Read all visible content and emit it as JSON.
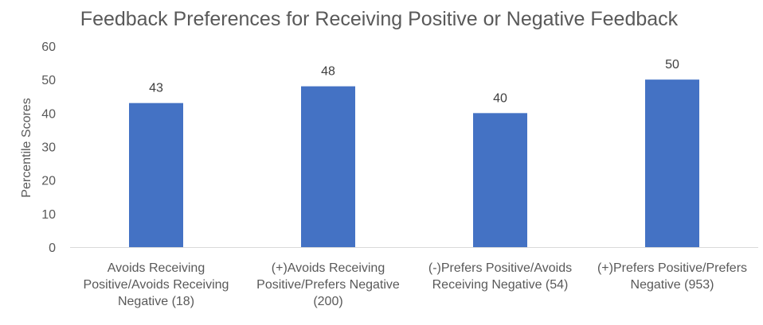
{
  "chart_data": {
    "type": "bar",
    "title": "Feedback Preferences for Receiving Positive or Negative Feedback",
    "xlabel": "",
    "ylabel": "Percentile Scores",
    "categories": [
      "Avoids Receiving Positive/Avoids Receiving Negative (18)",
      "(+)Avoids Receiving Positive/Prefers Negative (200)",
      "(-)Prefers Positive/Avoids Receiving Negative (54)",
      "(+)Prefers Positive/Prefers Negative (953)"
    ],
    "category_lines": [
      [
        "Avoids Receiving",
        "Positive/Avoids Receiving",
        "Negative (18)"
      ],
      [
        "(+)Avoids Receiving",
        "Positive/Prefers Negative",
        "(200)"
      ],
      [
        "(-)Prefers Positive/Avoids",
        "Receiving Negative (54)"
      ],
      [
        "(+)Prefers Positive/Prefers",
        "Negative (953)"
      ]
    ],
    "values": [
      43,
      48,
      40,
      50
    ],
    "data_labels": [
      "43",
      "48",
      "40",
      "50"
    ],
    "ylim": [
      0,
      60
    ],
    "yticks": [
      0,
      10,
      20,
      30,
      40,
      50,
      60
    ],
    "ytick_labels": [
      "0",
      "10",
      "20",
      "30",
      "40",
      "50",
      "60"
    ],
    "grid": false,
    "legend": "none",
    "colors": {
      "bar": "#4472C4",
      "text": "#595959",
      "data_label": "#404040",
      "axis": "#D9D9D9"
    }
  }
}
